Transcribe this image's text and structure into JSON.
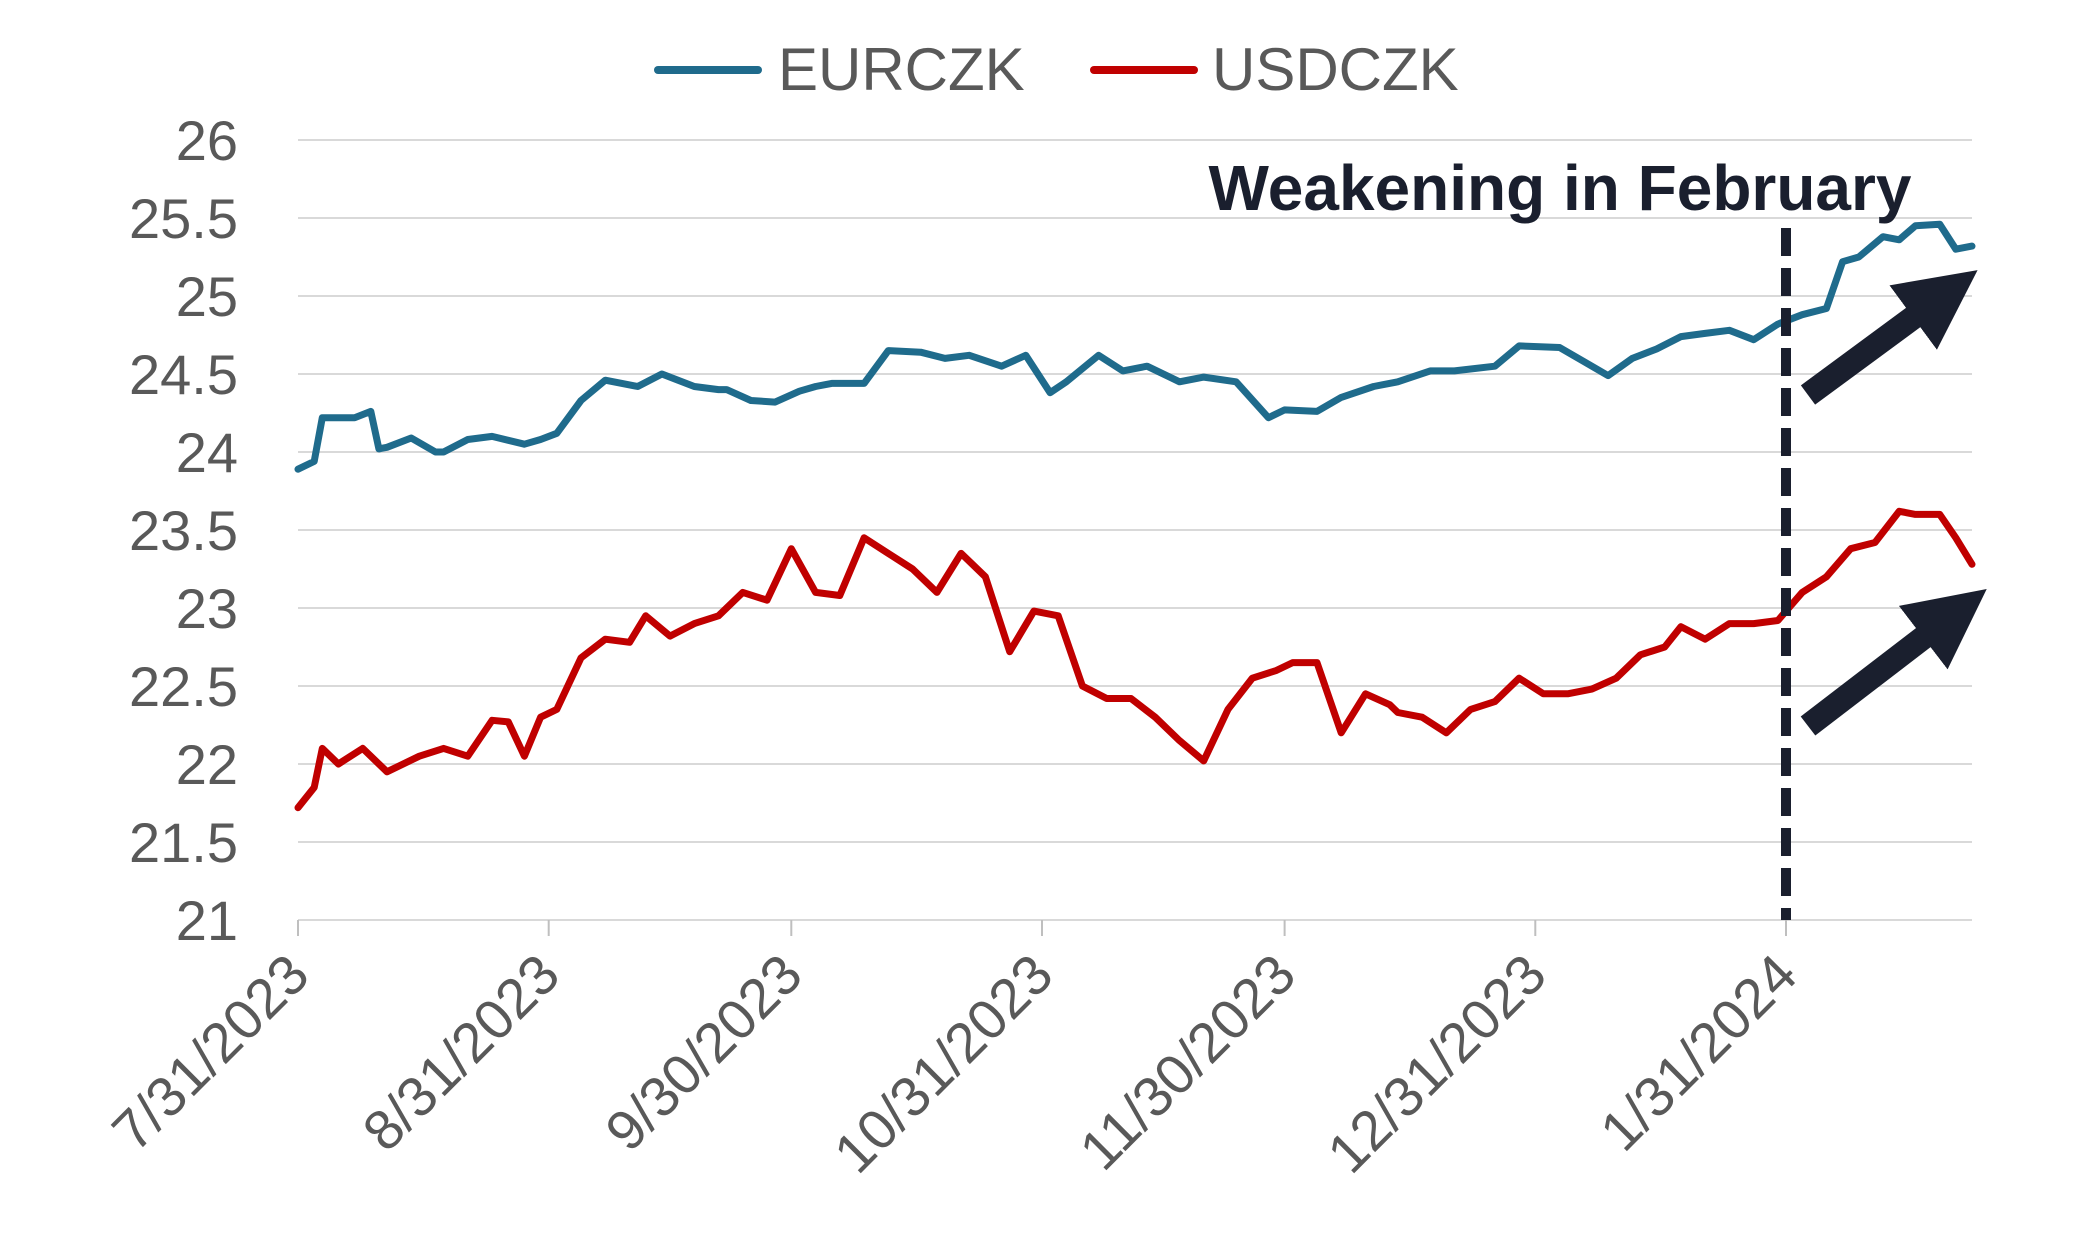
{
  "chart_data": {
    "type": "line",
    "annotation": "Weakening in February",
    "marker_date": "2024-01-31",
    "ylim": [
      21,
      26
    ],
    "yticks": [
      21,
      21.5,
      22,
      22.5,
      23,
      23.5,
      24,
      24.5,
      25,
      25.5,
      26
    ],
    "ytick_labels": [
      "21",
      "21.5",
      "22",
      "22.5",
      "23",
      "23.5",
      "24",
      "24.5",
      "25",
      "25.5",
      "26"
    ],
    "xlim": [
      "2023-07-31",
      "2024-02-23"
    ],
    "xticks": [
      "2023-07-31",
      "2023-08-31",
      "2023-09-30",
      "2023-10-31",
      "2023-11-30",
      "2023-12-31",
      "2024-01-31"
    ],
    "xtick_labels": [
      "7/31/2023",
      "8/31/2023",
      "9/30/2023",
      "10/31/2023",
      "11/30/2023",
      "12/31/2023",
      "1/31/2024"
    ],
    "grid": true,
    "legend_position": "top-center",
    "series": [
      {
        "name": "EURCZK",
        "color": "#1f6b8c",
        "x": [
          "2023-07-31",
          "2023-08-02",
          "2023-08-03",
          "2023-08-07",
          "2023-08-09",
          "2023-08-10",
          "2023-08-11",
          "2023-08-14",
          "2023-08-17",
          "2023-08-18",
          "2023-08-21",
          "2023-08-24",
          "2023-08-28",
          "2023-08-30",
          "2023-09-01",
          "2023-09-04",
          "2023-09-07",
          "2023-09-11",
          "2023-09-14",
          "2023-09-18",
          "2023-09-21",
          "2023-09-22",
          "2023-09-25",
          "2023-09-28",
          "2023-10-01",
          "2023-10-03",
          "2023-10-05",
          "2023-10-09",
          "2023-10-12",
          "2023-10-16",
          "2023-10-19",
          "2023-10-22",
          "2023-10-26",
          "2023-10-29",
          "2023-11-01",
          "2023-11-03",
          "2023-11-07",
          "2023-11-10",
          "2023-11-13",
          "2023-11-17",
          "2023-11-20",
          "2023-11-24",
          "2023-11-28",
          "2023-11-30",
          "2023-12-04",
          "2023-12-07",
          "2023-12-11",
          "2023-12-14",
          "2023-12-18",
          "2023-12-21",
          "2023-12-26",
          "2023-12-29",
          "2024-01-03",
          "2024-01-06",
          "2024-01-09",
          "2024-01-12",
          "2024-01-15",
          "2024-01-18",
          "2024-01-21",
          "2024-01-24",
          "2024-01-27",
          "2024-01-30",
          "2024-02-02",
          "2024-02-05",
          "2024-02-07",
          "2024-02-09",
          "2024-02-12",
          "2024-02-14",
          "2024-02-16",
          "2024-02-19",
          "2024-02-21",
          "2024-02-23"
        ],
        "values": [
          23.89,
          23.94,
          24.22,
          24.22,
          24.26,
          24.02,
          24.03,
          24.09,
          24.0,
          24.0,
          24.08,
          24.1,
          24.05,
          24.08,
          24.12,
          24.33,
          24.46,
          24.42,
          24.5,
          24.42,
          24.4,
          24.4,
          24.33,
          24.32,
          24.39,
          24.42,
          24.44,
          24.44,
          24.65,
          24.64,
          24.6,
          24.62,
          24.55,
          24.62,
          24.38,
          24.45,
          24.62,
          24.52,
          24.55,
          24.45,
          24.48,
          24.45,
          24.22,
          24.27,
          24.26,
          24.35,
          24.42,
          24.45,
          24.52,
          24.52,
          24.55,
          24.68,
          24.67,
          24.58,
          24.49,
          24.6,
          24.66,
          24.74,
          24.76,
          24.78,
          24.72,
          24.82,
          24.88,
          24.92,
          25.22,
          25.25,
          25.38,
          25.36,
          25.45,
          25.46,
          25.3,
          25.32
        ]
      },
      {
        "name": "USDCZK",
        "color": "#c00000",
        "x": [
          "2023-07-31",
          "2023-08-02",
          "2023-08-03",
          "2023-08-05",
          "2023-08-08",
          "2023-08-11",
          "2023-08-15",
          "2023-08-18",
          "2023-08-21",
          "2023-08-24",
          "2023-08-26",
          "2023-08-28",
          "2023-08-30",
          "2023-09-01",
          "2023-09-04",
          "2023-09-07",
          "2023-09-10",
          "2023-09-12",
          "2023-09-15",
          "2023-09-18",
          "2023-09-21",
          "2023-09-24",
          "2023-09-27",
          "2023-09-30",
          "2023-10-03",
          "2023-10-06",
          "2023-10-09",
          "2023-10-12",
          "2023-10-15",
          "2023-10-18",
          "2023-10-21",
          "2023-10-24",
          "2023-10-27",
          "2023-10-30",
          "2023-11-02",
          "2023-11-05",
          "2023-11-08",
          "2023-11-11",
          "2023-11-14",
          "2023-11-17",
          "2023-11-20",
          "2023-11-23",
          "2023-11-26",
          "2023-11-29",
          "2023-12-01",
          "2023-12-04",
          "2023-12-07",
          "2023-12-10",
          "2023-12-13",
          "2023-12-14",
          "2023-12-17",
          "2023-12-20",
          "2023-12-23",
          "2023-12-26",
          "2023-12-29",
          "2024-01-01",
          "2024-01-04",
          "2024-01-07",
          "2024-01-10",
          "2024-01-13",
          "2024-01-16",
          "2024-01-18",
          "2024-01-21",
          "2024-01-24",
          "2024-01-27",
          "2024-01-30",
          "2024-02-02",
          "2024-02-05",
          "2024-02-08",
          "2024-02-11",
          "2024-02-14",
          "2024-02-16",
          "2024-02-19",
          "2024-02-21",
          "2024-02-23"
        ],
        "values": [
          21.72,
          21.85,
          22.1,
          22.0,
          22.1,
          21.95,
          22.05,
          22.1,
          22.05,
          22.28,
          22.27,
          22.05,
          22.3,
          22.35,
          22.68,
          22.8,
          22.78,
          22.95,
          22.82,
          22.9,
          22.95,
          23.1,
          23.05,
          23.38,
          23.1,
          23.08,
          23.45,
          23.35,
          23.25,
          23.1,
          23.35,
          23.2,
          22.72,
          22.98,
          22.95,
          22.5,
          22.42,
          22.42,
          22.3,
          22.15,
          22.02,
          22.35,
          22.55,
          22.6,
          22.65,
          22.65,
          22.2,
          22.45,
          22.38,
          22.33,
          22.3,
          22.2,
          22.35,
          22.4,
          22.55,
          22.45,
          22.45,
          22.48,
          22.55,
          22.7,
          22.75,
          22.88,
          22.8,
          22.9,
          22.9,
          22.92,
          23.1,
          23.2,
          23.38,
          23.42,
          23.62,
          23.6,
          23.6,
          23.45,
          23.28
        ]
      }
    ]
  }
}
